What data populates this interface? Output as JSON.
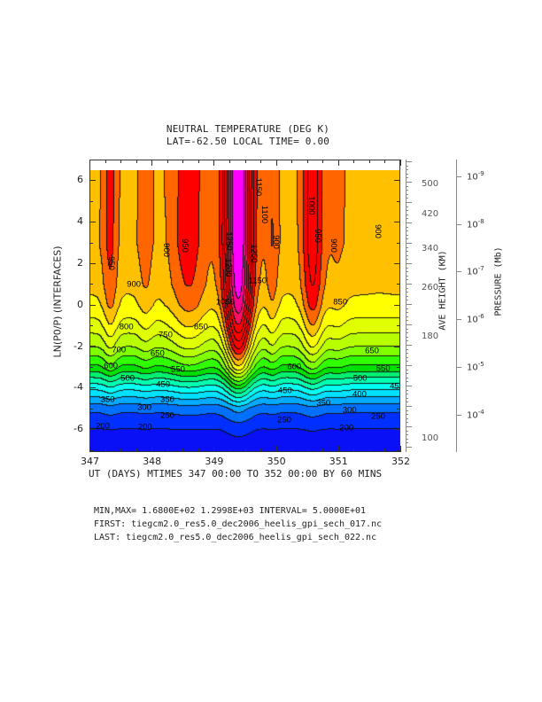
{
  "chart_data": {
    "type": "contour",
    "title": "NEUTRAL TEMPERATURE (DEG K)",
    "subtitle": "LAT=-62.50 LOCAL TIME= 0.00",
    "xlabel": "UT (DAYS) MTIMES 347 00:00 TO 352 00:00 BY   60 MINS",
    "ylabel": "LN(P0/P) (INTERFACES)",
    "xlim": [
      347,
      352
    ],
    "ylim": [
      -7.1,
      7.0
    ],
    "data_zlim": [
      -7.1,
      6.5
    ],
    "xticks": [
      "347",
      "348",
      "349",
      "350",
      "351",
      "352"
    ],
    "yticks": [
      "6",
      "4",
      "2",
      "0",
      "-2",
      "-4",
      "-6"
    ],
    "right_axis_height": {
      "label": "AVE HEIGHT (KM)",
      "ticks": [
        {
          "label": "500",
          "z": 5.8
        },
        {
          "label": "420",
          "z": 4.35
        },
        {
          "label": "340",
          "z": 2.7
        },
        {
          "label": "260",
          "z": 0.8
        },
        {
          "label": "180",
          "z": -1.55
        },
        {
          "label": "100",
          "z": -6.45
        }
      ]
    },
    "right_axis_pressure": {
      "label": "PRESSURE (Mb)",
      "ticks": [
        {
          "base": "10",
          "exp": "-9",
          "z": 6.2
        },
        {
          "base": "10",
          "exp": "-8",
          "z": 3.9
        },
        {
          "base": "10",
          "exp": "-7",
          "z": 1.6
        },
        {
          "base": "10",
          "exp": "-6",
          "z": -0.7
        },
        {
          "base": "10",
          "exp": "-5",
          "z": -3.0
        },
        {
          "base": "10",
          "exp": "-4",
          "z": -5.3
        }
      ]
    },
    "min": 168.0,
    "max": 1299.8,
    "interval": 50,
    "info": {
      "minmax": "MIN,MAX=  1.6800E+02  1.2998E+03 INTERVAL=  5.0000E+01",
      "first": "FIRST: tiegcm2.0_res5.0_dec2006_heelis_gpi_sech_017.nc",
      "last": "LAST:  tiegcm2.0_res5.0_dec2006_heelis_gpi_sech_022.nc"
    },
    "model": {
      "t_base": 885,
      "t_bottom": 168,
      "bumps": [
        {
          "center": 347.33,
          "width": 0.12,
          "amp": 80
        },
        {
          "center": 347.9,
          "width": 0.12,
          "amp": 40
        },
        {
          "center": 348.6,
          "width": 0.3,
          "amp": 90
        },
        {
          "center": 349.4,
          "width": 0.22,
          "amp": 430
        },
        {
          "center": 349.95,
          "width": 0.1,
          "amp": 60
        },
        {
          "center": 350.6,
          "width": 0.17,
          "amp": 140
        },
        {
          "center": 351.0,
          "width": 0.15,
          "amp": 30
        }
      ],
      "profile_z": [
        -7.1,
        -6,
        -5,
        -4,
        -3,
        -2,
        -1,
        0,
        1,
        2,
        3,
        7
      ],
      "profile_f": [
        0,
        0.04,
        0.13,
        0.34,
        0.58,
        0.74,
        0.85,
        0.93,
        0.97,
        0.985,
        1,
        1
      ]
    },
    "levels": [
      200,
      250,
      300,
      350,
      400,
      450,
      500,
      550,
      600,
      650,
      700,
      750,
      800,
      850,
      900,
      950,
      1000,
      1050,
      1100,
      1150,
      1200,
      1250
    ],
    "band_colors": [
      "#0a10f5",
      "#0030ff",
      "#0070ff",
      "#00aaff",
      "#00e0ff",
      "#00fff0",
      "#00ffb0",
      "#00f070",
      "#00e000",
      "#30ff00",
      "#80ff00",
      "#b8ff00",
      "#e0ff00",
      "#ffff00",
      "#ffc000",
      "#ff6600",
      "#ff0000",
      "#ff0000",
      "#ff0000",
      "#ff0000",
      "#ff1060",
      "#ff0090",
      "#ff00ff"
    ],
    "contour_labels": [
      {
        "text": "950",
        "x": 347.33,
        "z": 2.03
      },
      {
        "text": "900",
        "x": 347.7,
        "z": 1.0
      },
      {
        "text": "900",
        "x": 348.21,
        "z": 2.7
      },
      {
        "text": "950",
        "x": 348.51,
        "z": 2.9
      },
      {
        "text": "1150",
        "x": 349.69,
        "z": 5.7
      },
      {
        "text": "1100",
        "x": 349.79,
        "z": 4.4
      },
      {
        "text": "1000",
        "x": 350.55,
        "z": 4.8
      },
      {
        "text": "900",
        "x": 351.62,
        "z": 3.6
      },
      {
        "text": "950",
        "x": 350.65,
        "z": 3.35
      },
      {
        "text": "900",
        "x": 350.9,
        "z": 2.9
      },
      {
        "text": "900",
        "x": 349.98,
        "z": 3.05
      },
      {
        "text": "1250",
        "x": 349.22,
        "z": 3.1
      },
      {
        "text": "1250",
        "x": 349.62,
        "z": 2.5
      },
      {
        "text": "1200",
        "x": 349.21,
        "z": 1.85
      },
      {
        "text": "1150",
        "x": 349.69,
        "z": 1.2
      },
      {
        "text": "1050",
        "x": 349.17,
        "z": 0.15
      },
      {
        "text": "850",
        "x": 351.02,
        "z": 0.15
      },
      {
        "text": "800",
        "x": 347.58,
        "z": -1.05
      },
      {
        "text": "750",
        "x": 348.21,
        "z": -1.4
      },
      {
        "text": "850",
        "x": 348.78,
        "z": -1.05
      },
      {
        "text": "700",
        "x": 347.46,
        "z": -2.15
      },
      {
        "text": "650",
        "x": 348.08,
        "z": -2.33
      },
      {
        "text": "650",
        "x": 351.53,
        "z": -2.2
      },
      {
        "text": "600",
        "x": 347.33,
        "z": -2.9
      },
      {
        "text": "550",
        "x": 348.41,
        "z": -3.1
      },
      {
        "text": "600",
        "x": 350.28,
        "z": -2.97
      },
      {
        "text": "550",
        "x": 351.71,
        "z": -3.05
      },
      {
        "text": "500",
        "x": 347.6,
        "z": -3.5
      },
      {
        "text": "500",
        "x": 351.34,
        "z": -3.5
      },
      {
        "text": "450",
        "x": 348.17,
        "z": -3.8
      },
      {
        "text": "450",
        "x": 351.93,
        "z": -3.9
      },
      {
        "text": "450",
        "x": 350.13,
        "z": -4.1
      },
      {
        "text": "400",
        "x": 351.33,
        "z": -4.3
      },
      {
        "text": "350",
        "x": 347.28,
        "z": -4.55
      },
      {
        "text": "350",
        "x": 348.24,
        "z": -4.55
      },
      {
        "text": "350",
        "x": 350.75,
        "z": -4.7
      },
      {
        "text": "300",
        "x": 347.87,
        "z": -4.9
      },
      {
        "text": "300",
        "x": 351.17,
        "z": -5.05
      },
      {
        "text": "250",
        "x": 348.24,
        "z": -5.3
      },
      {
        "text": "250",
        "x": 350.12,
        "z": -5.5
      },
      {
        "text": "250",
        "x": 351.63,
        "z": -5.35
      },
      {
        "text": "200",
        "x": 347.2,
        "z": -5.8
      },
      {
        "text": "200",
        "x": 347.88,
        "z": -5.85
      },
      {
        "text": "200",
        "x": 351.12,
        "z": -5.9
      }
    ]
  }
}
